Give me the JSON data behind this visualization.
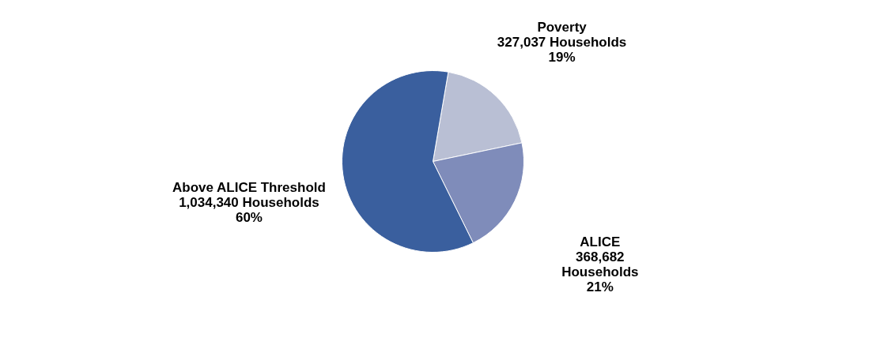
{
  "chart_data": {
    "type": "pie",
    "categories": [
      "Poverty",
      "ALICE",
      "Above ALICE Threshold"
    ],
    "values": [
      19,
      21,
      60
    ],
    "colors": [
      "#b9bfd4",
      "#7f8cba",
      "#3a5f9e"
    ],
    "value_labels": [
      [
        "327,037 Households",
        "19%"
      ],
      [
        "368,682",
        "Households",
        "21%"
      ],
      [
        "1,034,340 Households",
        "60%"
      ]
    ],
    "legend": false
  }
}
